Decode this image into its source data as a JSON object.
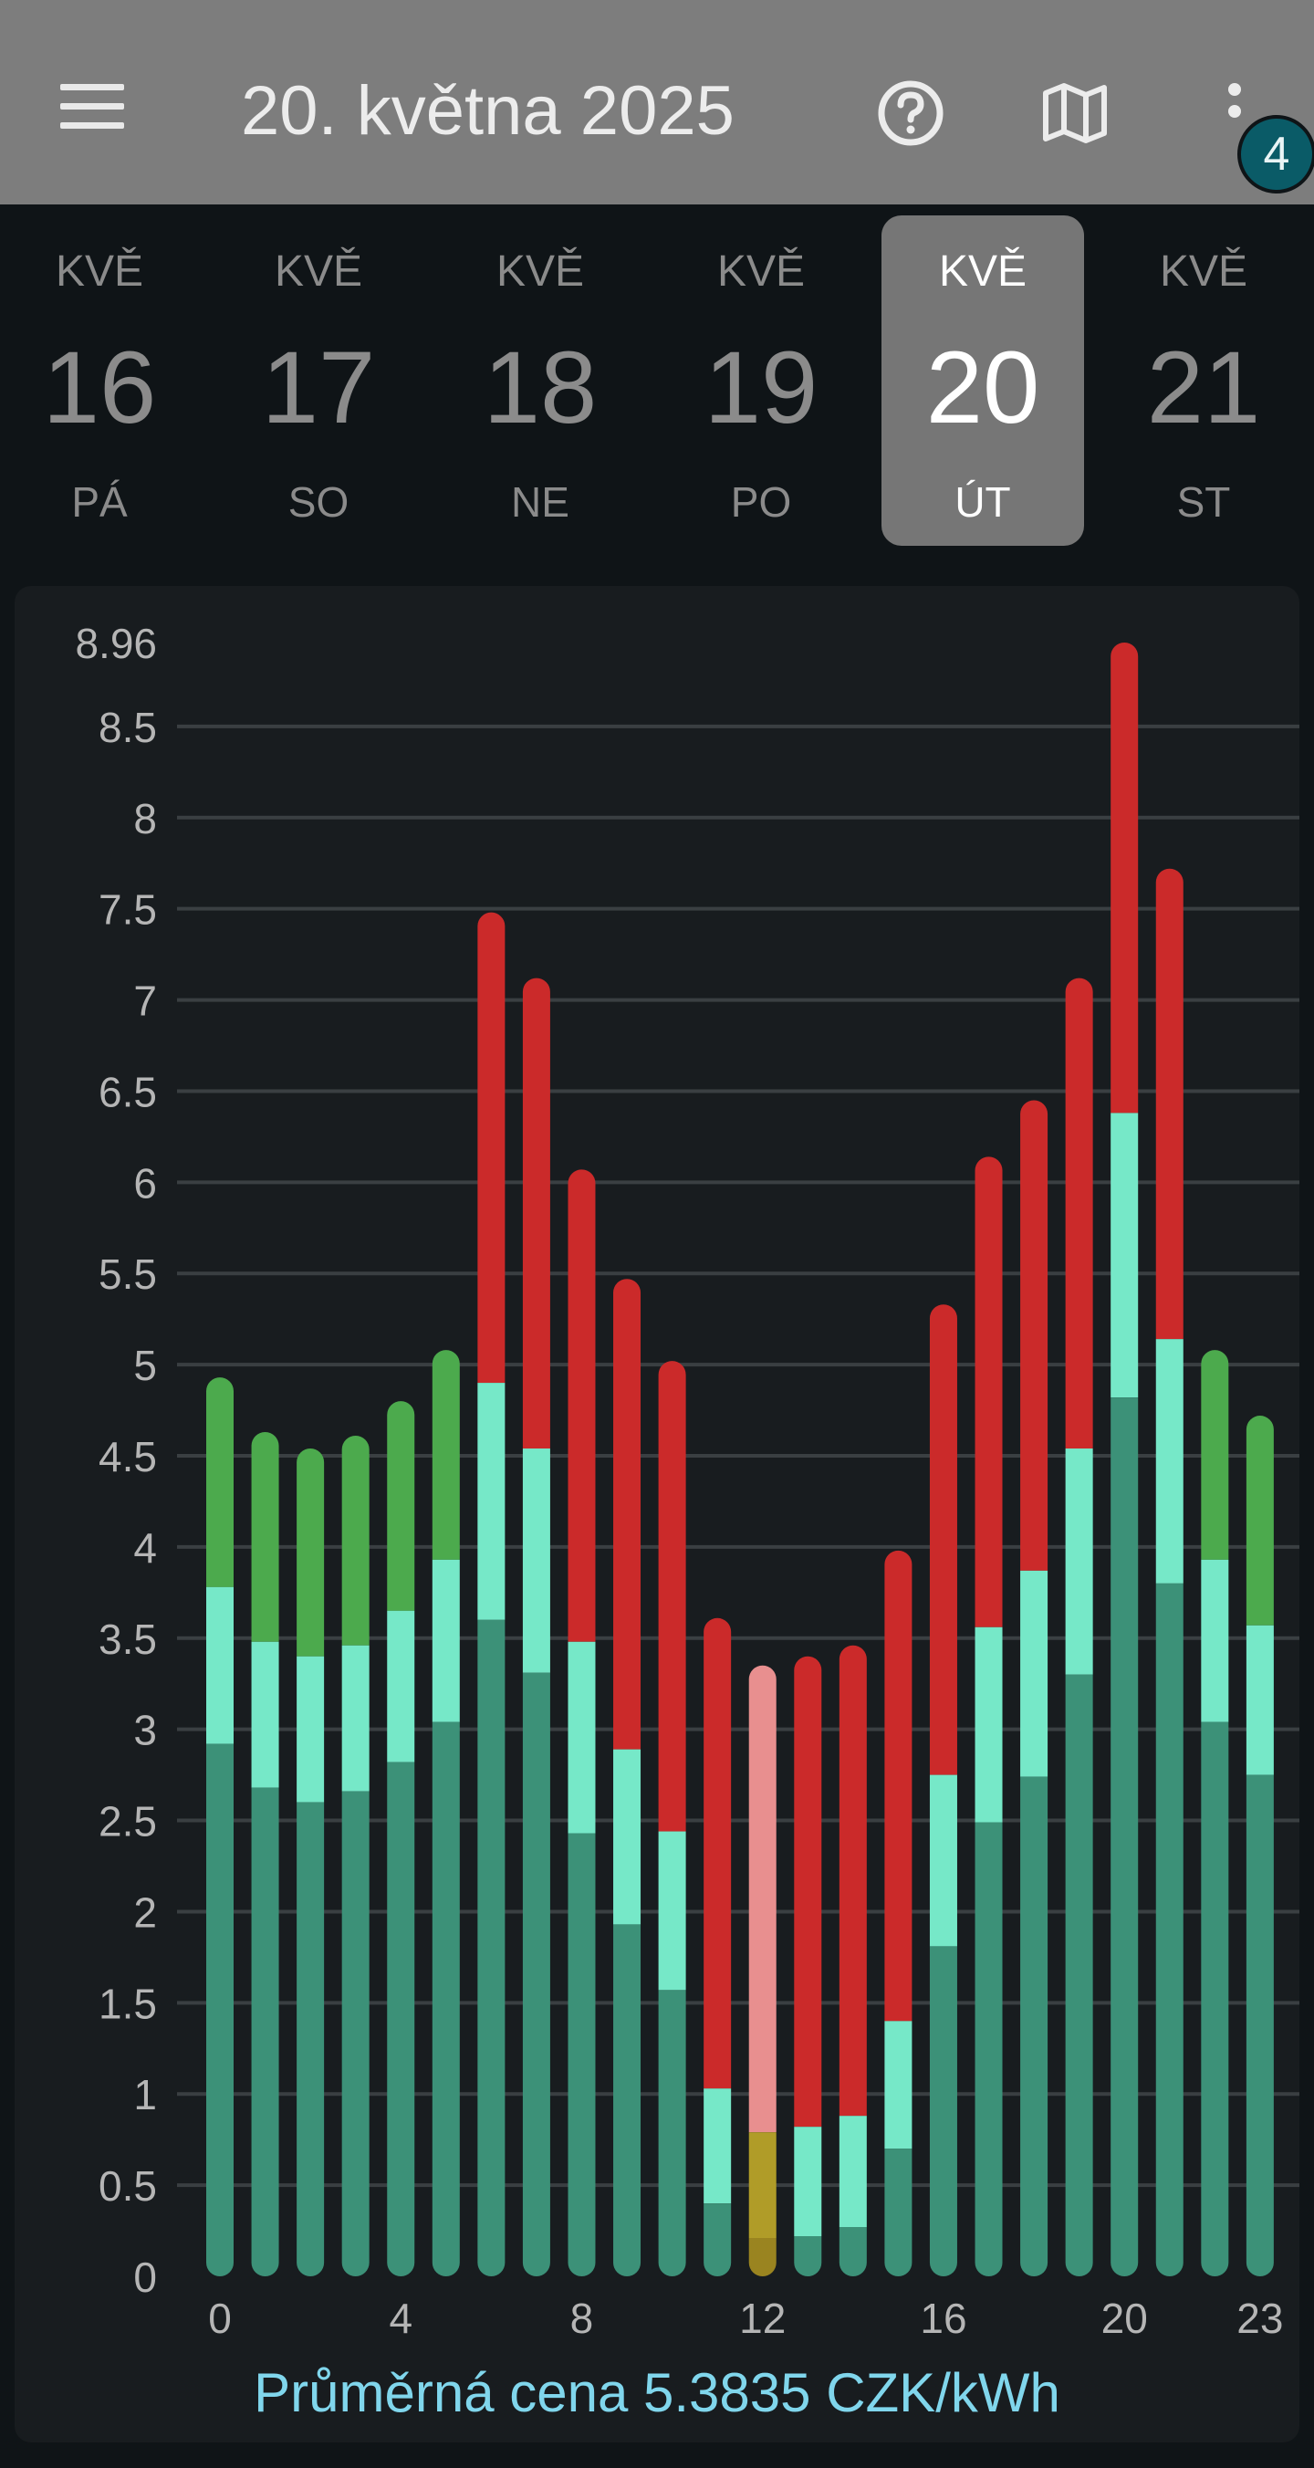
{
  "header": {
    "title": "20. května 2025",
    "menu_icon": "menu-icon",
    "help_icon": "help-circle-icon",
    "map_icon": "map-icon",
    "more_icon": "more-vertical-icon",
    "badge_count": "4",
    "bar_color": "#7d7d7d"
  },
  "days": [
    {
      "month": "KVĚ",
      "day": "16",
      "weekday": "PÁ",
      "selected": false
    },
    {
      "month": "KVĚ",
      "day": "17",
      "weekday": "SO",
      "selected": false
    },
    {
      "month": "KVĚ",
      "day": "18",
      "weekday": "NE",
      "selected": false
    },
    {
      "month": "KVĚ",
      "day": "19",
      "weekday": "PO",
      "selected": false
    },
    {
      "month": "KVĚ",
      "day": "20",
      "weekday": "ÚT",
      "selected": true
    },
    {
      "month": "KVĚ",
      "day": "21",
      "weekday": "ST",
      "selected": false
    }
  ],
  "footer": {
    "average_text": "Průměrná cena 5.3835 CZK/kWh"
  },
  "chart_data": {
    "type": "bar",
    "stacked": true,
    "title": "",
    "xlabel": "",
    "ylabel": "",
    "ylim": [
      0,
      8.96
    ],
    "y_ticks": [
      "0",
      "0.5",
      "1",
      "1.5",
      "2",
      "2.5",
      "3",
      "3.5",
      "4",
      "4.5",
      "5",
      "5.5",
      "6",
      "6.5",
      "7",
      "7.5",
      "8",
      "8.5",
      "8.96"
    ],
    "x_tick_labels": [
      {
        "hour": 0,
        "label": "0"
      },
      {
        "hour": 4,
        "label": "4"
      },
      {
        "hour": 8,
        "label": "8"
      },
      {
        "hour": 12,
        "label": "12"
      },
      {
        "hour": 16,
        "label": "16"
      },
      {
        "hour": 20,
        "label": "20"
      },
      {
        "hour": 23,
        "label": "23"
      }
    ],
    "grid": true,
    "hours": [
      0,
      1,
      2,
      3,
      4,
      5,
      6,
      7,
      8,
      9,
      10,
      11,
      12,
      13,
      14,
      15,
      16,
      17,
      18,
      19,
      20,
      21,
      22,
      23
    ],
    "segment_colors": {
      "base": "#3c9178",
      "middle": "#76e8c8",
      "top_low": "#4caa4d",
      "top_high": "#cb2a2a",
      "current_base": "#9a8420",
      "current_middle": "#b09c28",
      "current_top": "#e88f8f"
    },
    "current_hour": 12,
    "series": [
      {
        "name": "",
        "values": [
          2.92,
          2.68,
          2.6,
          2.66,
          2.82,
          3.04,
          3.6,
          3.31,
          2.43,
          1.93,
          1.57,
          0.4,
          0.21,
          0.22,
          0.27,
          0.7,
          1.81,
          2.49,
          2.74,
          3.3,
          4.82,
          3.8,
          3.04,
          2.75
        ]
      },
      {
        "name": "",
        "values": [
          0.86,
          0.8,
          0.8,
          0.8,
          0.83,
          0.89,
          1.3,
          1.23,
          1.05,
          0.96,
          0.87,
          0.63,
          0.58,
          0.6,
          0.61,
          0.7,
          0.94,
          1.07,
          1.13,
          1.24,
          1.56,
          1.34,
          0.89,
          0.82
        ]
      },
      {
        "name": "",
        "values": [
          1.15,
          1.15,
          1.14,
          1.15,
          1.15,
          1.15,
          2.58,
          2.58,
          2.59,
          2.58,
          2.58,
          2.58,
          2.56,
          2.58,
          2.58,
          2.58,
          2.58,
          2.58,
          2.58,
          2.58,
          2.58,
          2.58,
          1.15,
          1.15
        ]
      }
    ],
    "top_segment_type": [
      "low",
      "low",
      "low",
      "low",
      "low",
      "low",
      "high",
      "high",
      "high",
      "high",
      "high",
      "high",
      "high",
      "high",
      "high",
      "high",
      "high",
      "high",
      "high",
      "high",
      "high",
      "high",
      "low",
      "low"
    ]
  }
}
